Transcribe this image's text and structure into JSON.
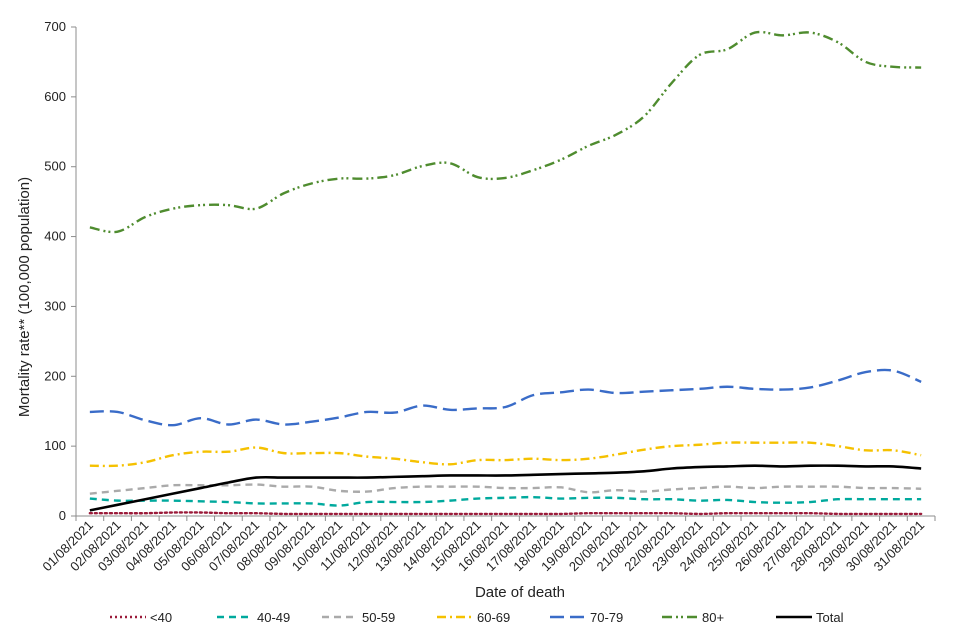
{
  "chart_data": {
    "type": "line",
    "title": "",
    "xlabel": "Date of death",
    "ylabel": "Mortality rate** (100,000 population)",
    "ylim": [
      0,
      700
    ],
    "yticks": [
      "0",
      "100",
      "200",
      "300",
      "400",
      "500",
      "600",
      "700"
    ],
    "categories": [
      "01/08/2021",
      "02/08/2021",
      "03/08/2021",
      "04/08/2021",
      "05/08/2021",
      "06/08/2021",
      "07/08/2021",
      "08/08/2021",
      "09/08/2021",
      "10/08/2021",
      "11/08/2021",
      "12/08/2021",
      "13/08/2021",
      "14/08/2021",
      "15/08/2021",
      "16/08/2021",
      "17/08/2021",
      "18/08/2021",
      "19/08/2021",
      "20/08/2021",
      "21/08/2021",
      "22/08/2021",
      "23/08/2021",
      "24/08/2021",
      "25/08/2021",
      "26/08/2021",
      "27/08/2021",
      "28/08/2021",
      "29/08/2021",
      "30/08/2021",
      "31/08/2021"
    ],
    "legend_position": "bottom",
    "grid": false,
    "series": [
      {
        "name": "<40",
        "color": "#9b1b3a",
        "dash": "dotted",
        "values": [
          4,
          4,
          4,
          5,
          5,
          4,
          4,
          3,
          3,
          3,
          3,
          3,
          3,
          3,
          3,
          3,
          3,
          3,
          4,
          4,
          4,
          4,
          3,
          4,
          4,
          4,
          4,
          3,
          3,
          3,
          3
        ]
      },
      {
        "name": "40-49",
        "color": "#00a99d",
        "dash": "dash",
        "values": [
          25,
          22,
          22,
          22,
          21,
          20,
          18,
          18,
          18,
          15,
          20,
          20,
          20,
          22,
          25,
          26,
          27,
          25,
          26,
          26,
          24,
          24,
          22,
          23,
          20,
          19,
          20,
          24,
          24,
          24,
          24
        ]
      },
      {
        "name": "50-59",
        "color": "#aaaaaa",
        "dash": "dash",
        "values": [
          32,
          36,
          40,
          44,
          44,
          44,
          45,
          42,
          42,
          36,
          35,
          40,
          42,
          42,
          42,
          40,
          40,
          41,
          34,
          37,
          35,
          38,
          40,
          42,
          40,
          42,
          42,
          42,
          40,
          40,
          39
        ]
      },
      {
        "name": "60-69",
        "color": "#f5c100",
        "dash": "dashdot",
        "values": [
          72,
          72,
          77,
          87,
          92,
          92,
          98,
          90,
          90,
          90,
          85,
          82,
          77,
          74,
          80,
          80,
          82,
          80,
          82,
          88,
          95,
          100,
          102,
          105,
          105,
          105,
          105,
          100,
          94,
          94,
          87
        ]
      },
      {
        "name": "70-79",
        "color": "#3a6cc8",
        "dash": "longdash",
        "values": [
          149,
          149,
          137,
          130,
          140,
          131,
          138,
          131,
          135,
          141,
          149,
          148,
          158,
          152,
          154,
          156,
          173,
          177,
          181,
          176,
          178,
          180,
          182,
          185,
          182,
          181,
          184,
          194,
          206,
          208,
          192
        ]
      },
      {
        "name": "80+",
        "color": "#4f8c2f",
        "dash": "dashdotdot",
        "values": [
          413,
          407,
          428,
          440,
          445,
          445,
          440,
          462,
          476,
          483,
          483,
          488,
          501,
          505,
          485,
          484,
          495,
          510,
          530,
          546,
          572,
          620,
          660,
          668,
          692,
          688,
          692,
          678,
          650,
          643,
          642
        ]
      },
      {
        "name": "Total",
        "color": "#000000",
        "dash": "solid",
        "values": [
          8,
          16,
          24,
          32,
          40,
          48,
          55,
          55,
          55,
          55,
          55,
          56,
          57,
          58,
          58,
          58,
          59,
          60,
          61,
          62,
          64,
          68,
          70,
          71,
          72,
          71,
          72,
          72,
          71,
          71,
          68
        ]
      }
    ]
  }
}
